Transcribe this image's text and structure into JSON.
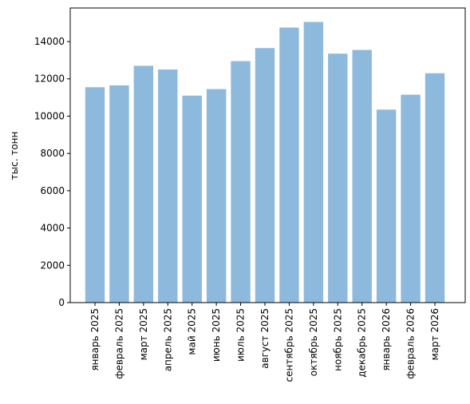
{
  "chart_data": {
    "type": "bar",
    "ylabel": "тыс. тонн",
    "categories": [
      "январь 2025",
      "февраль 2025",
      "март 2025",
      "апрель 2025",
      "май 2025",
      "июнь 2025",
      "июль 2025",
      "август 2025",
      "сентябрь 2025",
      "октябрь 2025",
      "ноябрь 2025",
      "декабрь 2025",
      "январь 2026",
      "февраль 2026",
      "март 2026"
    ],
    "values": [
      11550,
      11650,
      12700,
      12500,
      11100,
      11450,
      12950,
      13650,
      14750,
      15050,
      13350,
      13550,
      10350,
      11150,
      12300
    ],
    "color": "#8db9dc",
    "ylim": [
      0,
      15800
    ],
    "yticks": [
      0,
      2000,
      4000,
      6000,
      8000,
      10000,
      12000,
      14000
    ],
    "grid": false
  }
}
